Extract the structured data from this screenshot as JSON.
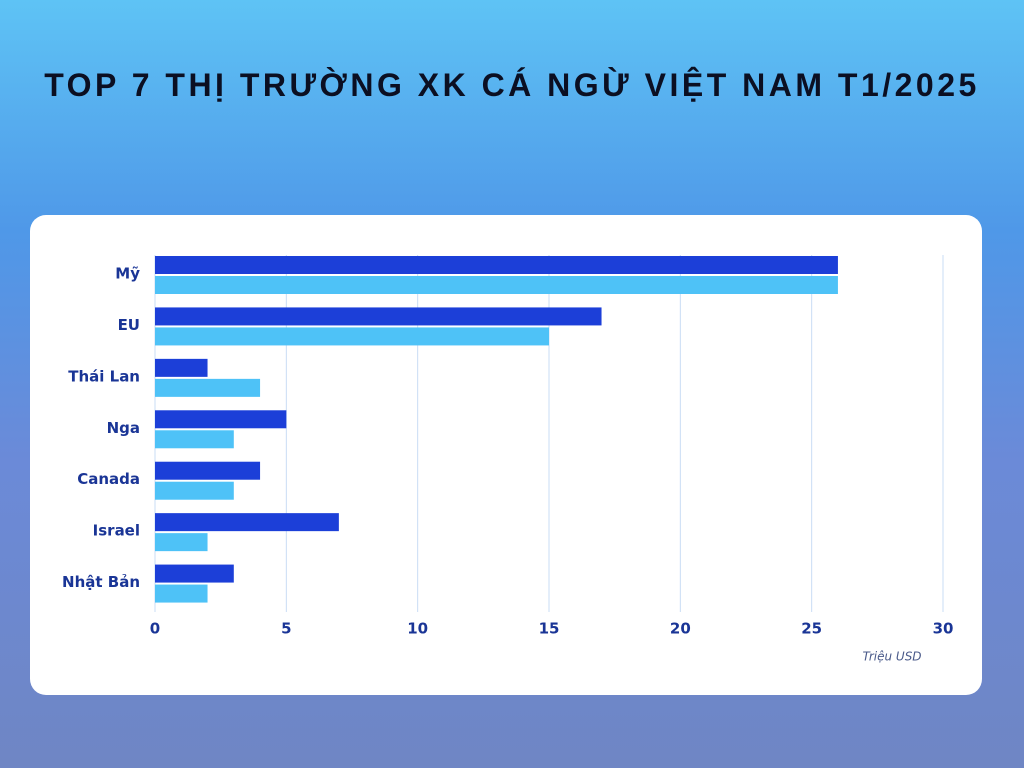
{
  "chart_data": {
    "type": "bar",
    "orientation": "horizontal",
    "title": "TOP 7 THỊ TRƯỜNG XK CÁ NGỪ VIỆT NAM T1/2025",
    "x_label": "Triệu USD",
    "categories": [
      "Mỹ",
      "EU",
      "Thái Lan",
      "Nga",
      "Canada",
      "Israel",
      "Nhật Bản"
    ],
    "series": [
      {
        "color": "#1c3fd8",
        "values": [
          26,
          17,
          2,
          5,
          4,
          7,
          3
        ]
      },
      {
        "color": "#4ec2f7",
        "values": [
          26,
          15,
          4,
          3,
          3,
          2,
          2
        ]
      }
    ],
    "xlim": [
      0,
      30
    ],
    "xticks": [
      0,
      5,
      10,
      15,
      20,
      25,
      30
    ],
    "grid": true
  }
}
